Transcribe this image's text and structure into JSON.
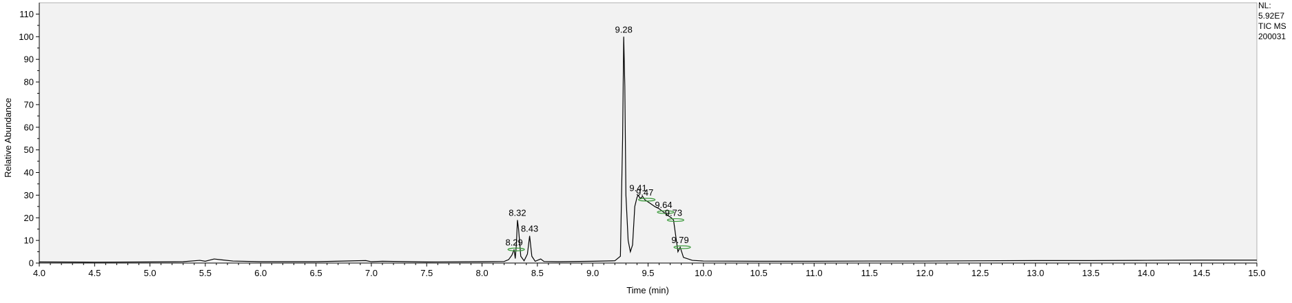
{
  "chart_data": {
    "type": "line",
    "title": "",
    "xlabel": "Time (min)",
    "ylabel": "Relative Abundance",
    "xlim": [
      4.0,
      15.0
    ],
    "ylim": [
      0,
      115
    ],
    "x_ticks": [
      "4.0",
      "4.5",
      "5.0",
      "5.5",
      "6.0",
      "6.5",
      "7.0",
      "7.5",
      "8.0",
      "8.5",
      "9.0",
      "9.5",
      "10.0",
      "10.5",
      "11.0",
      "11.5",
      "12.0",
      "12.5",
      "13.0",
      "13.5",
      "14.0",
      "14.5",
      "15.0"
    ],
    "y_ticks": [
      "0",
      "10",
      "20",
      "30",
      "40",
      "50",
      "60",
      "70",
      "80",
      "90",
      "100",
      "110"
    ],
    "grid": false,
    "colors": {
      "trace": "#000000",
      "peak_marker": "#3a9a3a",
      "plot_background": "#f2f2f2",
      "axis": "#000000"
    },
    "info_lines": [
      "NL:",
      "5.92E7",
      "TIC  MS",
      "200031"
    ],
    "series": [
      {
        "points": [
          [
            4.0,
            0.5
          ],
          [
            4.5,
            0.4
          ],
          [
            5.0,
            0.5
          ],
          [
            5.3,
            0.6
          ],
          [
            5.45,
            1.2
          ],
          [
            5.5,
            0.8
          ],
          [
            5.58,
            1.8
          ],
          [
            5.65,
            1.4
          ],
          [
            5.75,
            0.9
          ],
          [
            6.0,
            0.6
          ],
          [
            6.5,
            0.6
          ],
          [
            6.95,
            1.1
          ],
          [
            7.0,
            0.6
          ],
          [
            7.1,
            0.8
          ],
          [
            7.5,
            0.5
          ],
          [
            8.0,
            0.6
          ],
          [
            8.2,
            0.7
          ],
          [
            8.24,
            1.5
          ],
          [
            8.27,
            3.5
          ],
          [
            8.29,
            6.0
          ],
          [
            8.3,
            2.0
          ],
          [
            8.31,
            8.0
          ],
          [
            8.32,
            19.0
          ],
          [
            8.33,
            15.0
          ],
          [
            8.35,
            3.0
          ],
          [
            8.38,
            1.0
          ],
          [
            8.41,
            4.0
          ],
          [
            8.43,
            12.0
          ],
          [
            8.45,
            3.0
          ],
          [
            8.48,
            0.8
          ],
          [
            8.53,
            1.8
          ],
          [
            8.56,
            0.7
          ],
          [
            8.7,
            0.6
          ],
          [
            9.0,
            0.8
          ],
          [
            9.2,
            1.0
          ],
          [
            9.25,
            3.0
          ],
          [
            9.27,
            55.0
          ],
          [
            9.28,
            100.0
          ],
          [
            9.29,
            78.0
          ],
          [
            9.3,
            30.0
          ],
          [
            9.32,
            10.0
          ],
          [
            9.34,
            5.0
          ],
          [
            9.36,
            8.0
          ],
          [
            9.38,
            25.0
          ],
          [
            9.4,
            29.0
          ],
          [
            9.41,
            30.0
          ],
          [
            9.43,
            28.5
          ],
          [
            9.45,
            29.5
          ],
          [
            9.47,
            28.0
          ],
          [
            9.5,
            27.0
          ],
          [
            9.53,
            26.0
          ],
          [
            9.56,
            25.0
          ],
          [
            9.6,
            24.0
          ],
          [
            9.64,
            22.5
          ],
          [
            9.68,
            21.0
          ],
          [
            9.71,
            20.0
          ],
          [
            9.73,
            19.0
          ],
          [
            9.75,
            12.0
          ],
          [
            9.77,
            5.0
          ],
          [
            9.79,
            7.0
          ],
          [
            9.82,
            2.5
          ],
          [
            9.9,
            1.2
          ],
          [
            10.0,
            0.9
          ],
          [
            10.5,
            0.8
          ],
          [
            11.0,
            0.8
          ],
          [
            11.5,
            0.9
          ],
          [
            12.0,
            0.9
          ],
          [
            12.5,
            1.0
          ],
          [
            13.0,
            1.1
          ],
          [
            13.5,
            1.1
          ],
          [
            14.0,
            1.2
          ],
          [
            14.5,
            1.3
          ],
          [
            15.0,
            1.3
          ]
        ]
      }
    ],
    "peak_labels": [
      {
        "text": "8.29",
        "x": 8.29,
        "y": 6.0,
        "marker": true
      },
      {
        "text": "8.32",
        "x": 8.32,
        "y": 19.0,
        "marker": false
      },
      {
        "text": "8.43",
        "x": 8.43,
        "y": 12.0,
        "marker": false
      },
      {
        "text": "9.28",
        "x": 9.28,
        "y": 100.0,
        "marker": false
      },
      {
        "text": "9.41",
        "x": 9.41,
        "y": 30.0,
        "marker": false
      },
      {
        "text": "9.47",
        "x": 9.47,
        "y": 28.0,
        "marker": true
      },
      {
        "text": "9.64",
        "x": 9.64,
        "y": 22.5,
        "marker": true
      },
      {
        "text": "9.73",
        "x": 9.73,
        "y": 19.0,
        "marker": true
      },
      {
        "text": "9.79",
        "x": 9.79,
        "y": 7.0,
        "marker": true
      }
    ]
  }
}
